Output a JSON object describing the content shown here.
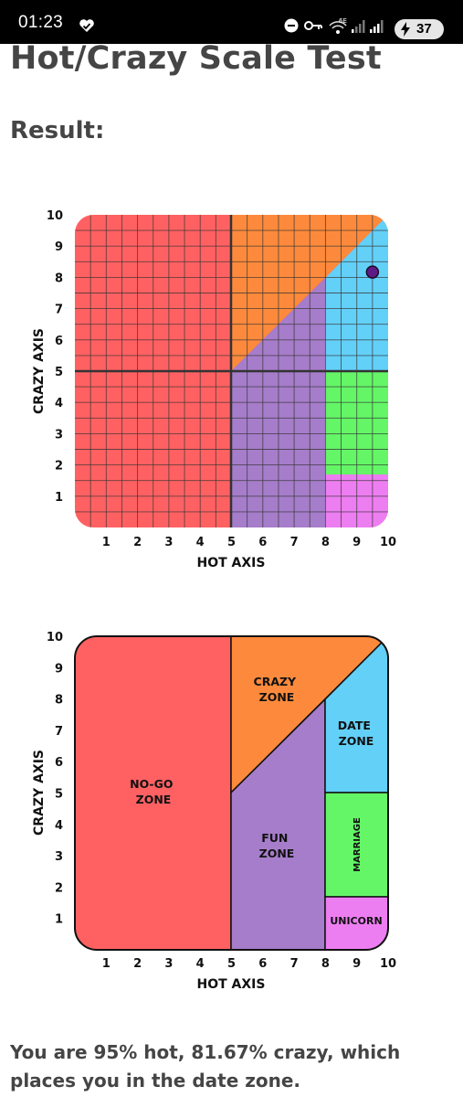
{
  "status_bar": {
    "time": "01:23",
    "battery": "37",
    "network_label": "6E"
  },
  "page": {
    "title": "Hot/Crazy Scale Test",
    "result_heading": "Result:",
    "result_text": "You are 95% hot, 81.67% crazy, which places you in the date zone."
  },
  "colors": {
    "red": "#ff6162",
    "orange": "#fd8a3c",
    "purple": "#a67dca",
    "blue": "#63d0f8",
    "green": "#64f667",
    "pink": "#ed7ef1",
    "point": "#5e1a84"
  },
  "chart_data": [
    {
      "type": "scatter",
      "xlabel": "HOT AXIS",
      "ylabel": "CRAZY AXIS",
      "xlim": [
        0,
        10
      ],
      "ylim": [
        0,
        10
      ],
      "x_ticks": [
        "1",
        "2",
        "3",
        "4",
        "5",
        "6",
        "7",
        "8",
        "9",
        "10"
      ],
      "y_ticks": [
        "1",
        "2",
        "3",
        "4",
        "5",
        "6",
        "7",
        "8",
        "9",
        "10"
      ],
      "grid": true,
      "points": [
        {
          "x": 9.5,
          "y": 8.17
        }
      ]
    },
    {
      "type": "area",
      "xlabel": "HOT AXIS",
      "ylabel": "CRAZY AXIS",
      "xlim": [
        0,
        10
      ],
      "ylim": [
        0,
        10
      ],
      "x_ticks": [
        "1",
        "2",
        "3",
        "4",
        "5",
        "6",
        "7",
        "8",
        "9",
        "10"
      ],
      "y_ticks": [
        "1",
        "2",
        "3",
        "4",
        "5",
        "6",
        "7",
        "8",
        "9",
        "10"
      ],
      "grid": false,
      "zones": [
        {
          "label": [
            "NO-GO",
            "ZONE"
          ],
          "color": "red"
        },
        {
          "label": [
            "CRAZY",
            "ZONE"
          ],
          "color": "orange"
        },
        {
          "label": [
            "FUN",
            "ZONE"
          ],
          "color": "purple"
        },
        {
          "label": [
            "DATE",
            "ZONE"
          ],
          "color": "blue"
        },
        {
          "label": [
            "MARRIAGE"
          ],
          "color": "green"
        },
        {
          "label": [
            "UNICORN"
          ],
          "color": "pink"
        }
      ]
    }
  ]
}
